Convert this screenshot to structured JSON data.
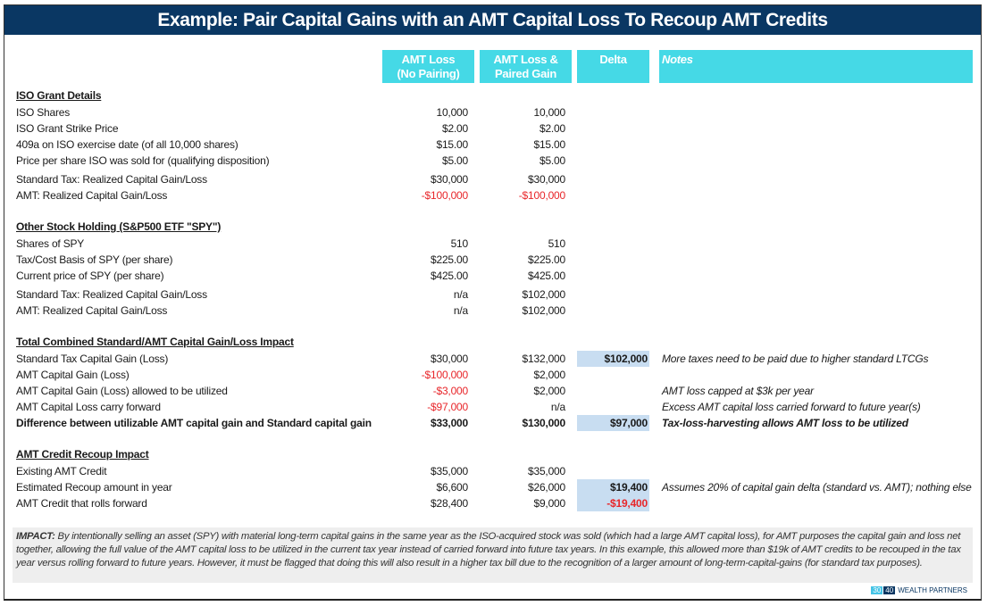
{
  "title": "Example: Pair Capital Gains with an AMT Capital Loss To Recoup AMT Credits",
  "columns": {
    "c1": "AMT Loss (No Pairing)",
    "c1a": "AMT Loss",
    "c1b": "(No Pairing)",
    "c2a": "AMT Loss &",
    "c2b": "Paired Gain",
    "delta": "Delta",
    "notes": "Notes"
  },
  "colors": {
    "title_bg": "#0a3763",
    "header_bg": "#45d9e6",
    "delta_highlight": "#c8ddf1",
    "negative": "#e8262a"
  },
  "sections": [
    {
      "title": "ISO Grant Details",
      "rows": [
        {
          "label": "ISO Shares",
          "c1": "10,000",
          "c2": "10,000"
        },
        {
          "label": "ISO Grant Strike Price",
          "c1": "$2.00",
          "c2": "$2.00"
        },
        {
          "label": "409a on ISO exercise date (of all 10,000 shares)",
          "c1": "$15.00",
          "c2": "$15.00"
        },
        {
          "label": "Price per share ISO was sold for (qualifying disposition)",
          "c1": "$5.00",
          "c2": "$5.00"
        },
        {
          "label": "Standard Tax: Realized Capital Gain/Loss",
          "c1": "$30,000",
          "c2": "$30,000"
        },
        {
          "label": "AMT: Realized Capital Gain/Loss",
          "c1": "-$100,000",
          "c2": "-$100,000"
        }
      ]
    },
    {
      "title": "Other Stock Holding (S&P500 ETF \"SPY\")",
      "rows": [
        {
          "label": "Shares of SPY",
          "c1": "510",
          "c2": "510"
        },
        {
          "label": "Tax/Cost Basis of SPY (per share)",
          "c1": "$225.00",
          "c2": "$225.00"
        },
        {
          "label": "Current price of SPY (per share)",
          "c1": "$425.00",
          "c2": "$425.00"
        },
        {
          "label": "Standard Tax: Realized Capital Gain/Loss",
          "c1": "n/a",
          "c2": "$102,000"
        },
        {
          "label": "AMT: Realized Capital Gain/Loss",
          "c1": "n/a",
          "c2": "$102,000"
        }
      ]
    },
    {
      "title": "Total Combined Standard/AMT Capital Gain/Loss Impact",
      "rows": [
        {
          "label": "Standard Tax Capital Gain (Loss)",
          "c1": "$30,000",
          "c2": "$132,000",
          "delta": "$102,000",
          "note": "More taxes need to be paid due to higher standard LTCGs"
        },
        {
          "label": "AMT Capital Gain (Loss)",
          "c1": "-$100,000",
          "c2": "$2,000"
        },
        {
          "label": "AMT Capital Gain (Loss) allowed to be utilized",
          "c1": "-$3,000",
          "c2": "$2,000",
          "note": "AMT loss capped at $3k per year"
        },
        {
          "label": "AMT Capital Loss carry forward",
          "c1": "-$97,000",
          "c2": "n/a",
          "note": "Excess AMT capital loss carried forward to future year(s)"
        },
        {
          "label": "Difference between utilizable AMT capital gain and Standard capital gain",
          "c1": "$33,000",
          "c2": "$130,000",
          "delta": "$97,000",
          "note": "Tax-loss-harvesting allows AMT loss to be utilized",
          "bold": true
        }
      ]
    },
    {
      "title": "AMT Credit Recoup Impact",
      "rows": [
        {
          "label": "Existing AMT Credit",
          "c1": "$35,000",
          "c2": "$35,000"
        },
        {
          "label": "Estimated Recoup amount in year",
          "c1": "$6,600",
          "c2": "$26,000",
          "delta": "$19,400",
          "note": "Assumes 20% of capital gain delta (standard vs. AMT); nothing else"
        },
        {
          "label": "AMT Credit that rolls forward",
          "c1": "$28,400",
          "c2": "$9,000",
          "delta": "-$19,400"
        }
      ]
    }
  ],
  "impact": {
    "label": "IMPACT:",
    "text": " By intentionally selling an asset (SPY) with material long-term capital gains in the same year as the ISO-acquired stock was sold (which had a large AMT capital loss), for AMT purposes the capital gain and loss net together, allowing the full value of the AMT capital loss to be utilized in the current tax year instead of carried forward into future tax years. In this example, this allowed more than $19k of AMT credits to be recouped in the tax year versus rolling forward to future years.  However, it must be flagged that doing this will also result in a higher tax bill due to the recognition of a larger amount of long-term-capital-gains (for standard tax purposes)."
  },
  "logo": {
    "a": "30",
    "b": "40",
    "text": "WEALTH PARTNERS"
  }
}
